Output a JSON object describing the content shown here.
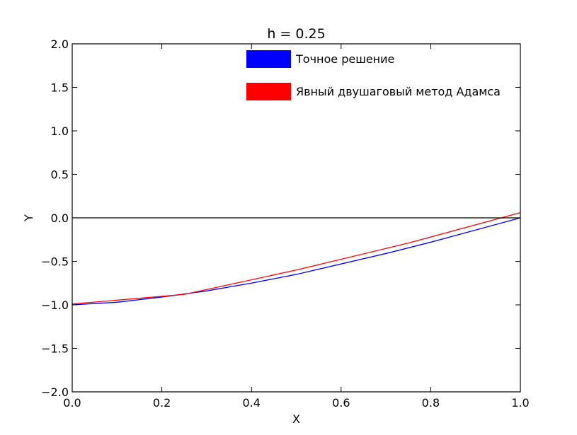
{
  "chart_data": {
    "type": "line",
    "title": "h = 0.25",
    "xlabel": "X",
    "ylabel": "Y",
    "xlim": [
      0.0,
      1.0
    ],
    "ylim": [
      -2.0,
      2.0
    ],
    "x_ticks": [
      "0.0",
      "0.2",
      "0.4",
      "0.6",
      "0.8",
      "1.0"
    ],
    "y_ticks": [
      "2.0",
      "1.5",
      "1.0",
      "0.5",
      "0.0",
      "−0.5",
      "−1.0",
      "−1.5",
      "−2.0"
    ],
    "x_tick_values": [
      0.0,
      0.2,
      0.4,
      0.6,
      0.8,
      1.0
    ],
    "y_tick_values": [
      2.0,
      1.5,
      1.0,
      0.5,
      0.0,
      -0.5,
      -1.0,
      -1.5,
      -2.0
    ],
    "grid": false,
    "legend_position": "top-center",
    "reference_line_y": 0.0,
    "series": [
      {
        "name": "Точное решение",
        "color": "#0000ff",
        "x": [
          0.0,
          0.1,
          0.2,
          0.3,
          0.4,
          0.5,
          0.6,
          0.7,
          0.8,
          0.9,
          1.0
        ],
        "y": [
          -1.0,
          -0.97,
          -0.91,
          -0.84,
          -0.75,
          -0.65,
          -0.53,
          -0.41,
          -0.28,
          -0.14,
          0.0
        ]
      },
      {
        "name": "Явный двушаговый метод Адамса",
        "color": "#ff0000",
        "x": [
          0.0,
          0.25,
          0.5,
          0.75,
          1.0
        ],
        "y": [
          -0.99,
          -0.88,
          -0.6,
          -0.29,
          0.06
        ]
      }
    ]
  }
}
